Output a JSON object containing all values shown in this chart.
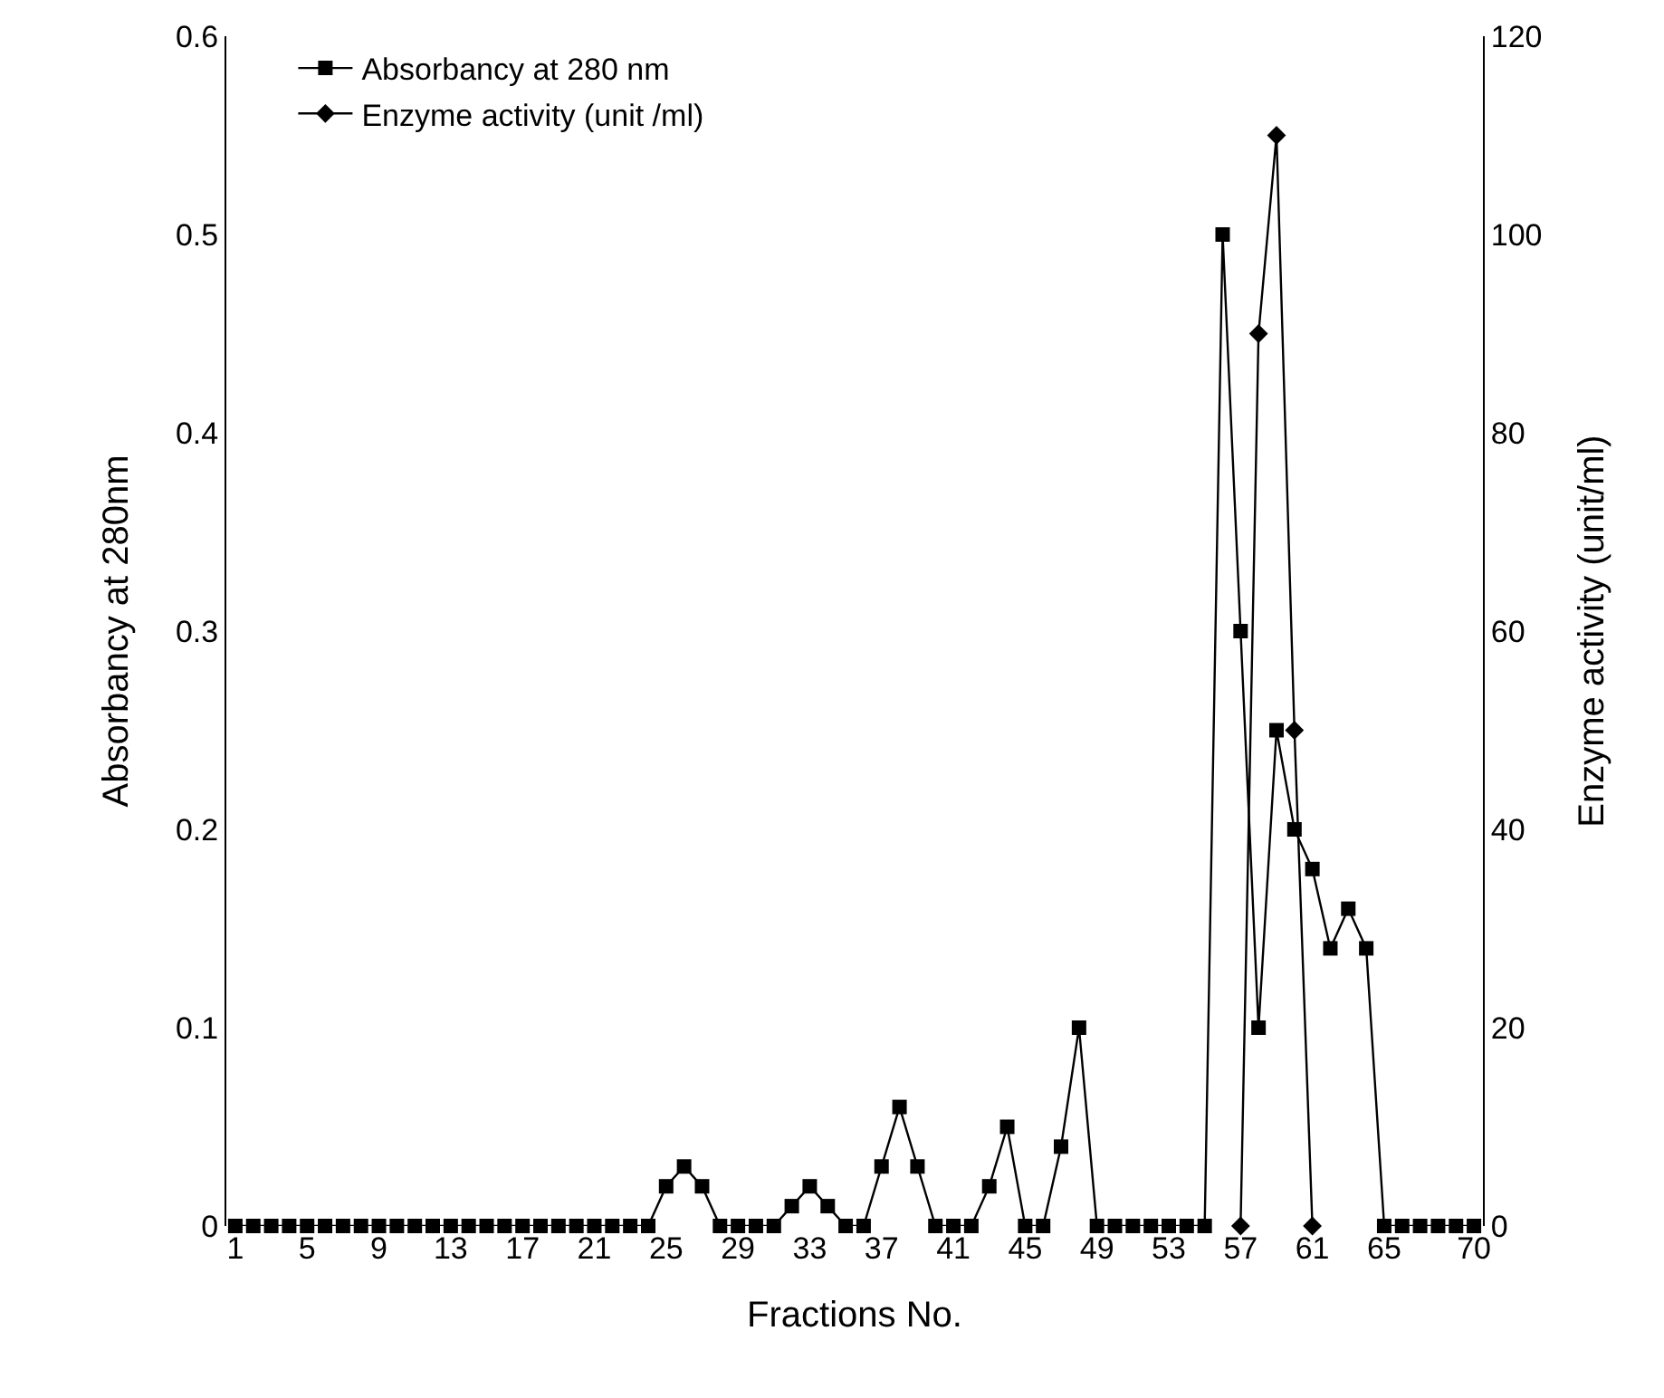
{
  "chart_data": {
    "type": "line",
    "xlabel": "Fractions No.",
    "ylabel": "Absorbancy at 280nm",
    "y2label": "Enzyme activity (unit/ml)",
    "categories": [
      "1",
      null,
      null,
      null,
      "5",
      null,
      null,
      null,
      "9",
      null,
      null,
      null,
      "13",
      null,
      null,
      null,
      "17",
      null,
      null,
      null,
      "21",
      null,
      null,
      null,
      "25",
      null,
      null,
      null,
      "29",
      null,
      null,
      null,
      "33",
      null,
      null,
      null,
      "37",
      null,
      null,
      null,
      "41",
      null,
      null,
      null,
      "45",
      null,
      null,
      null,
      "49",
      null,
      null,
      null,
      "53",
      null,
      null,
      null,
      "57",
      null,
      null,
      null,
      "61",
      null,
      null,
      null,
      "65",
      null,
      null,
      null,
      null,
      "70"
    ],
    "series": [
      {
        "name": "Absorbancy at 280 nm",
        "color": "#000000",
        "marker": "square",
        "values": [
          0,
          0,
          0,
          0,
          0,
          0,
          0,
          0,
          0,
          0,
          0,
          0,
          0,
          0,
          0,
          0,
          0,
          0,
          0,
          0,
          0,
          0,
          0,
          0,
          0.02,
          0.03,
          0.02,
          0,
          0,
          0,
          0,
          0.01,
          0.02,
          0.01,
          0,
          0,
          0.03,
          0.06,
          0.03,
          0,
          0,
          0,
          0.02,
          0.05,
          0,
          0,
          0.04,
          0.1,
          0,
          0,
          0,
          0,
          0,
          0,
          0,
          0.5,
          0.3,
          0.1,
          0.25,
          0.2,
          0.18,
          0.14,
          0.16,
          0.14,
          0,
          0,
          0,
          0,
          0,
          0
        ]
      },
      {
        "name": "Enzyme activity (unit /ml)",
        "color": "#000000",
        "marker": "diamond",
        "axis": "y2",
        "values": [
          null,
          null,
          null,
          null,
          null,
          null,
          null,
          null,
          null,
          null,
          null,
          null,
          null,
          null,
          null,
          null,
          null,
          null,
          null,
          null,
          null,
          null,
          null,
          null,
          null,
          null,
          null,
          null,
          null,
          null,
          null,
          null,
          null,
          null,
          null,
          null,
          null,
          null,
          null,
          null,
          null,
          null,
          null,
          null,
          null,
          null,
          null,
          null,
          null,
          null,
          null,
          null,
          null,
          null,
          null,
          null,
          0,
          90,
          110,
          50,
          0,
          null,
          null,
          null,
          null,
          null,
          null,
          null,
          null,
          null
        ]
      }
    ],
    "ylim": [
      0,
      0.6
    ],
    "yticks": [
      0,
      0.1,
      0.2,
      0.3,
      0.4,
      0.5,
      0.6
    ],
    "y2lim": [
      0,
      120
    ],
    "y2ticks": [
      0,
      20,
      40,
      60,
      80,
      100,
      120
    ],
    "grid": false,
    "legend": "top left",
    "line_style": "solid"
  }
}
